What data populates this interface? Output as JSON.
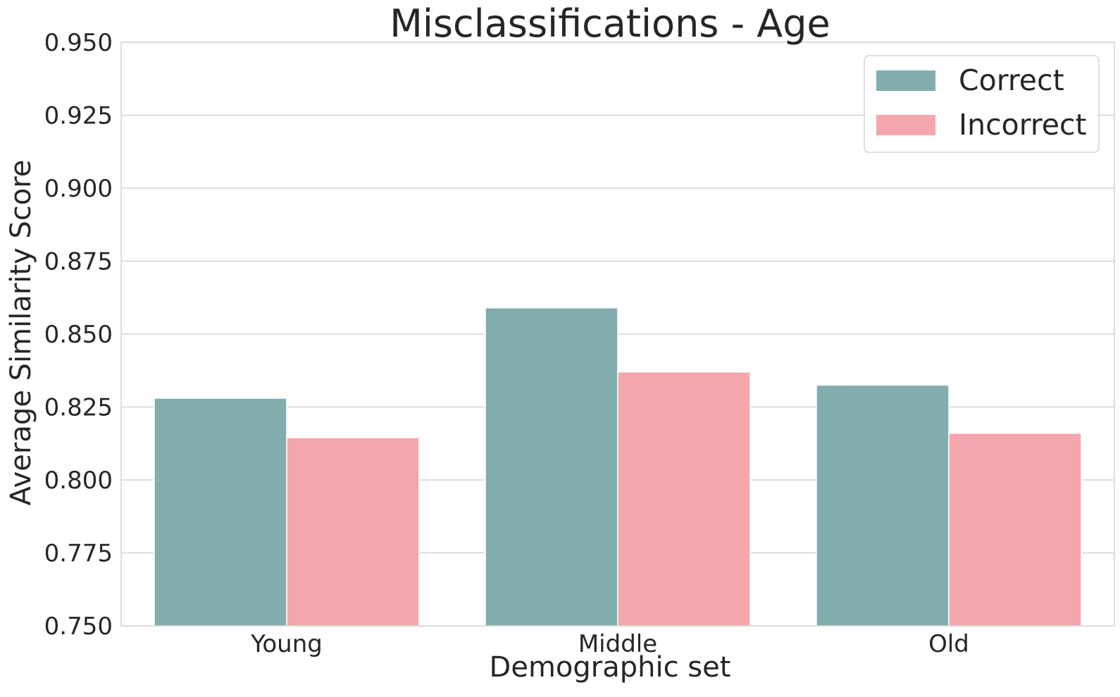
{
  "chart_data": {
    "type": "bar",
    "title": "Misclassifications - Age",
    "xlabel": "Demographic set",
    "ylabel": "Average Similarity Score",
    "categories": [
      "Young",
      "Middle",
      "Old"
    ],
    "series": [
      {
        "name": "Correct",
        "color": "#82adae",
        "values": [
          0.828,
          0.859,
          0.8325
        ]
      },
      {
        "name": "Incorrect",
        "color": "#f3a6ac",
        "values": [
          0.8145,
          0.837,
          0.816
        ]
      }
    ],
    "ylim": [
      0.75,
      0.95
    ],
    "yticks": [
      "0.750",
      "0.775",
      "0.800",
      "0.825",
      "0.850",
      "0.875",
      "0.900",
      "0.925",
      "0.950"
    ],
    "grid": true,
    "legend_position": "top-right"
  }
}
